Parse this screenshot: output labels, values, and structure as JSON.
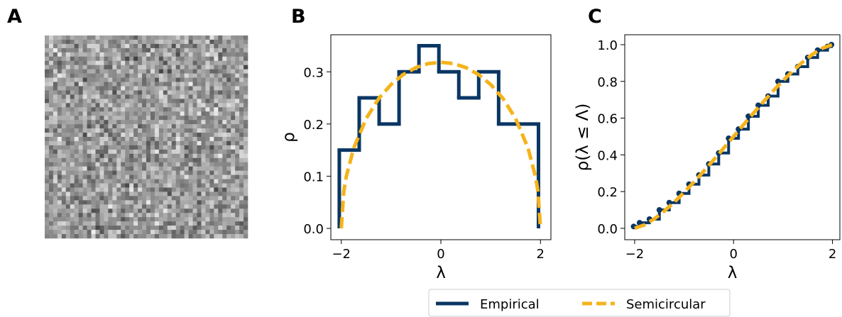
{
  "panel_labels": [
    "A",
    "B",
    "C"
  ],
  "chart_data": [
    {
      "type": "histogram",
      "xlabel": "λ",
      "ylabel": "ρ",
      "xlim": [
        -2.21,
        2.21
      ],
      "ylim": [
        -0.0217,
        0.371
      ],
      "xticks": [
        {
          "value": -2,
          "label": "−2"
        },
        0,
        2
      ],
      "yticks": [
        {
          "value": 0,
          "label": "0.0"
        },
        {
          "value": 0.1,
          "label": "0.1"
        },
        {
          "value": 0.2,
          "label": "0.2"
        },
        {
          "value": 0.3,
          "label": "0.3"
        }
      ],
      "series": [
        {
          "name": "Empirical",
          "color": "#0a3663",
          "style": "step",
          "bins": [
            -2.04,
            -1.64,
            -1.24,
            -0.84,
            -0.44,
            -0.04,
            0.36,
            0.76,
            1.16,
            1.56,
            1.96
          ],
          "values": [
            0.15,
            0.25,
            0.2,
            0.3,
            0.35,
            0.3,
            0.25,
            0.3,
            0.2,
            0.2
          ]
        },
        {
          "name": "Semicircular",
          "color": "#f5b31b",
          "style": "dashed",
          "x": [
            -2,
            -1.95,
            -1.9,
            -1.75,
            -1.5,
            -1.25,
            -1,
            -0.75,
            -0.5,
            -0.25,
            0,
            0.25,
            0.5,
            0.75,
            1,
            1.25,
            1.5,
            1.75,
            1.9,
            1.95,
            2
          ],
          "values": [
            0,
            0.0707,
            0.0994,
            0.154,
            0.2105,
            0.2485,
            0.2757,
            0.2951,
            0.3082,
            0.3158,
            0.3183,
            0.3158,
            0.3082,
            0.2951,
            0.2757,
            0.2485,
            0.2105,
            0.154,
            0.0994,
            0.0707,
            0
          ]
        }
      ]
    },
    {
      "type": "line",
      "xlabel": "λ",
      "ylabel": "ρ(λ ≤ Λ)",
      "xlim": [
        -2.2,
        2.15
      ],
      "ylim": [
        -0.062,
        1.054
      ],
      "xticks": [
        {
          "value": -2,
          "label": "−2"
        },
        0,
        2
      ],
      "yticks": [
        {
          "value": 0,
          "label": "0.0"
        },
        {
          "value": 0.2,
          "label": "0.2"
        },
        {
          "value": 0.4,
          "label": "0.4"
        },
        {
          "value": 0.6,
          "label": "0.6"
        },
        {
          "value": 0.8,
          "label": "0.8"
        },
        {
          "value": 1,
          "label": "1.0"
        }
      ],
      "series": [
        {
          "name": "Empirical",
          "color": "#0a3663",
          "style": "steps-markers",
          "x": [
            -2.02,
            -1.9,
            -1.7,
            -1.5,
            -1.3,
            -1.1,
            -0.9,
            -0.7,
            -0.5,
            -0.3,
            -0.1,
            0.1,
            0.3,
            0.5,
            0.7,
            0.9,
            1.1,
            1.3,
            1.5,
            1.7,
            1.9,
            1.98
          ],
          "values": [
            0.01,
            0.03,
            0.05,
            0.1,
            0.14,
            0.19,
            0.24,
            0.29,
            0.35,
            0.41,
            0.49,
            0.54,
            0.61,
            0.67,
            0.72,
            0.8,
            0.84,
            0.88,
            0.93,
            0.97,
            0.99,
            1.0
          ]
        },
        {
          "name": "Semicircular",
          "color": "#f5b31b",
          "style": "dashed",
          "x": [
            -2,
            -1.8,
            -1.6,
            -1.4,
            -1.2,
            -1,
            -0.8,
            -0.6,
            -0.4,
            -0.2,
            0,
            0.2,
            0.4,
            0.6,
            0.8,
            1,
            1.2,
            1.4,
            1.6,
            1.8,
            2
          ],
          "values": [
            0,
            0.0187,
            0.052,
            0.094,
            0.1424,
            0.1955,
            0.2523,
            0.3119,
            0.3735,
            0.4364,
            0.5,
            0.5636,
            0.6265,
            0.6881,
            0.7477,
            0.8045,
            0.8576,
            0.906,
            0.948,
            0.9813,
            1
          ]
        }
      ]
    }
  ]
}
